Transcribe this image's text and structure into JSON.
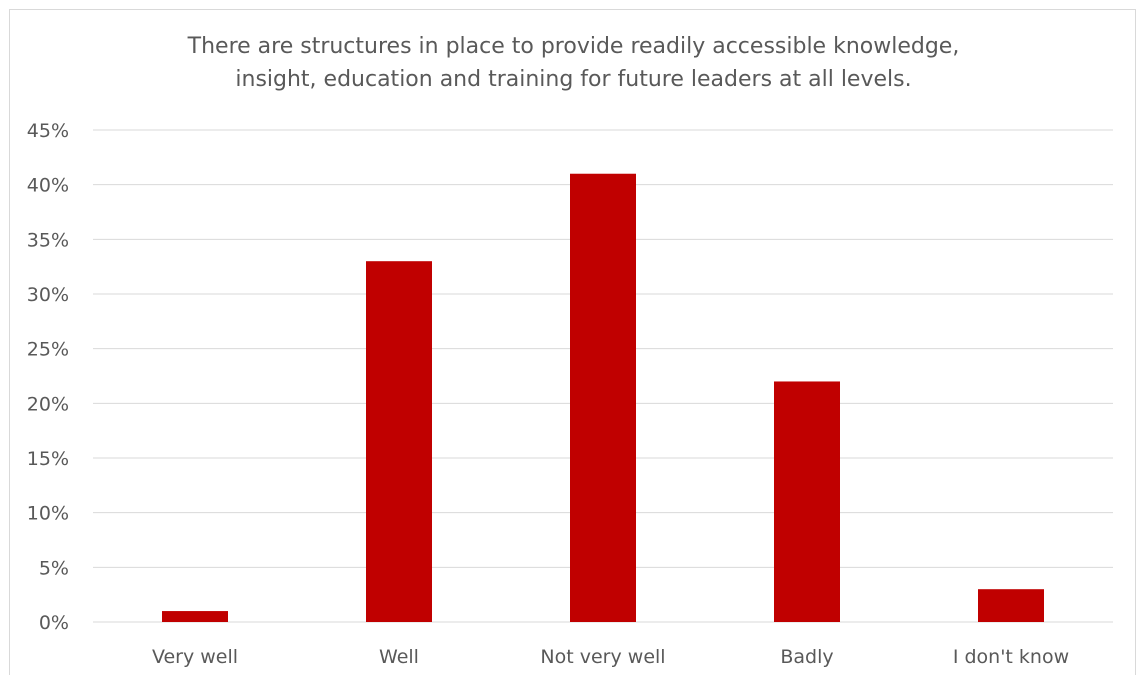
{
  "chart_data": {
    "type": "bar",
    "title_lines": [
      "There are structures in place to provide readily accessible knowledge,",
      "insight, education and training for future leaders at all levels."
    ],
    "categories": [
      "Very well",
      "Well",
      "Not very well",
      "Badly",
      "I don't know"
    ],
    "values": [
      1,
      33,
      41,
      22,
      3
    ],
    "value_unit": "%",
    "ylim": [
      0,
      45
    ],
    "ytick_step": 5,
    "ytick_labels": [
      "0%",
      "5%",
      "10%",
      "15%",
      "20%",
      "25%",
      "30%",
      "35%",
      "40%",
      "45%"
    ],
    "xlabel": "",
    "ylabel": "",
    "grid": true,
    "legend": "none",
    "bar_color": "#c00000",
    "grid_color": "#d9d9d9",
    "text_color": "#595959"
  }
}
